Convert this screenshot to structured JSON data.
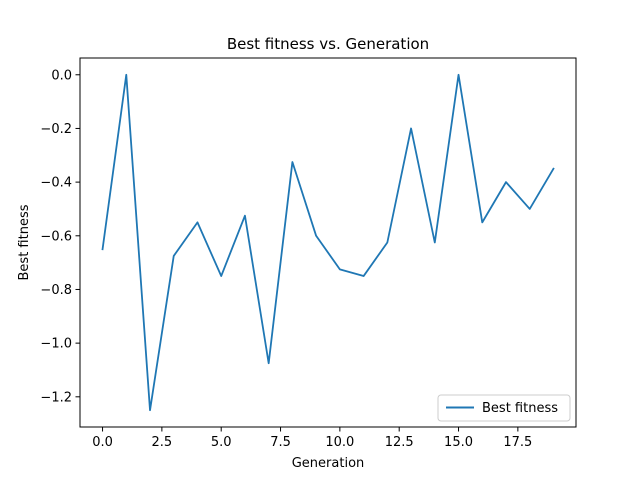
{
  "chart_data": {
    "type": "line",
    "title": "Best fitness vs. Generation",
    "xlabel": "Generation",
    "ylabel": "Best fitness",
    "xlim": [
      -0.95,
      19.95
    ],
    "ylim": [
      -1.3125,
      0.0625
    ],
    "x_ticks": [
      0.0,
      2.5,
      5.0,
      7.5,
      10.0,
      12.5,
      15.0,
      17.5
    ],
    "x_tick_labels": [
      "0.0",
      "2.5",
      "5.0",
      "7.5",
      "10.0",
      "12.5",
      "15.0",
      "17.5"
    ],
    "y_ticks": [
      0.0,
      -0.2,
      -0.4,
      -0.6,
      -0.8,
      -1.0,
      -1.2
    ],
    "y_tick_labels": [
      "0.0",
      "−0.2",
      "−0.4",
      "−0.6",
      "−0.8",
      "−1.0",
      "−1.2"
    ],
    "legend": {
      "position": "lower-right"
    },
    "grid": false,
    "series": [
      {
        "name": "Best fitness",
        "color": "#1f77b4",
        "x": [
          0,
          1,
          2,
          3,
          4,
          5,
          6,
          7,
          8,
          9,
          10,
          11,
          12,
          13,
          14,
          15,
          16,
          17,
          18,
          19
        ],
        "values": [
          -0.65,
          0.0,
          -1.25,
          -0.675,
          -0.55,
          -0.75,
          -0.525,
          -1.075,
          -0.325,
          -0.6,
          -0.725,
          -0.75,
          -0.625,
          -0.2,
          -0.625,
          0.0,
          -0.55,
          -0.4,
          -0.5,
          -0.35
        ]
      }
    ]
  }
}
